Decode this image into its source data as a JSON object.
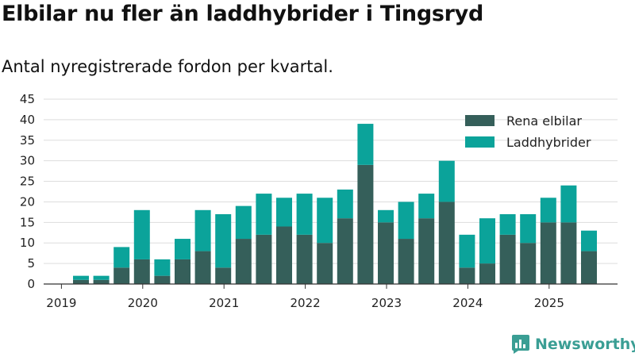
{
  "header": {
    "title": "Elbilar nu fler än laddhybrider i Tingsryd",
    "subtitle": "Antal nyregistrerade fordon per kvartal."
  },
  "brand": {
    "name": "Newsworthy",
    "icon": "bar-chart-logo-icon"
  },
  "colors": {
    "elbilar": "#355f5a",
    "laddhybrider": "#0ba39a",
    "grid": "#dddddd",
    "brand": "#3a9e94"
  },
  "chart_data": {
    "type": "bar",
    "stacked": true,
    "title": "Elbilar nu fler än laddhybrider i Tingsryd",
    "subtitle": "Antal nyregistrerade fordon per kvartal.",
    "xlabel": "",
    "ylabel": "",
    "ylim": [
      0,
      45
    ],
    "yticks": [
      0,
      5,
      10,
      15,
      20,
      25,
      30,
      35,
      40,
      45
    ],
    "xticks": [
      "2019",
      "2020",
      "2021",
      "2022",
      "2023",
      "2024",
      "2025"
    ],
    "grid": true,
    "legend_position": "top-right",
    "categories": [
      "2019 Q2",
      "2019 Q3",
      "2019 Q4",
      "2020 Q1",
      "2020 Q2",
      "2020 Q3",
      "2020 Q4",
      "2021 Q1",
      "2021 Q2",
      "2021 Q3",
      "2021 Q4",
      "2022 Q1",
      "2022 Q2",
      "2022 Q3",
      "2022 Q4",
      "2023 Q1",
      "2023 Q2",
      "2023 Q3",
      "2023 Q4",
      "2024 Q1",
      "2024 Q2",
      "2024 Q3",
      "2024 Q4",
      "2025 Q1",
      "2025 Q2",
      "2025 Q3"
    ],
    "series": [
      {
        "name": "Rena elbilar",
        "values": [
          1,
          1,
          4,
          6,
          2,
          6,
          8,
          4,
          11,
          12,
          14,
          12,
          10,
          16,
          29,
          15,
          11,
          16,
          20,
          4,
          5,
          12,
          10,
          15,
          15,
          8
        ]
      },
      {
        "name": "Laddhybrider",
        "values": [
          1,
          1,
          5,
          12,
          4,
          5,
          10,
          13,
          8,
          10,
          7,
          10,
          11,
          7,
          10,
          3,
          9,
          6,
          10,
          8,
          11,
          5,
          7,
          6,
          9,
          5
        ]
      }
    ]
  }
}
